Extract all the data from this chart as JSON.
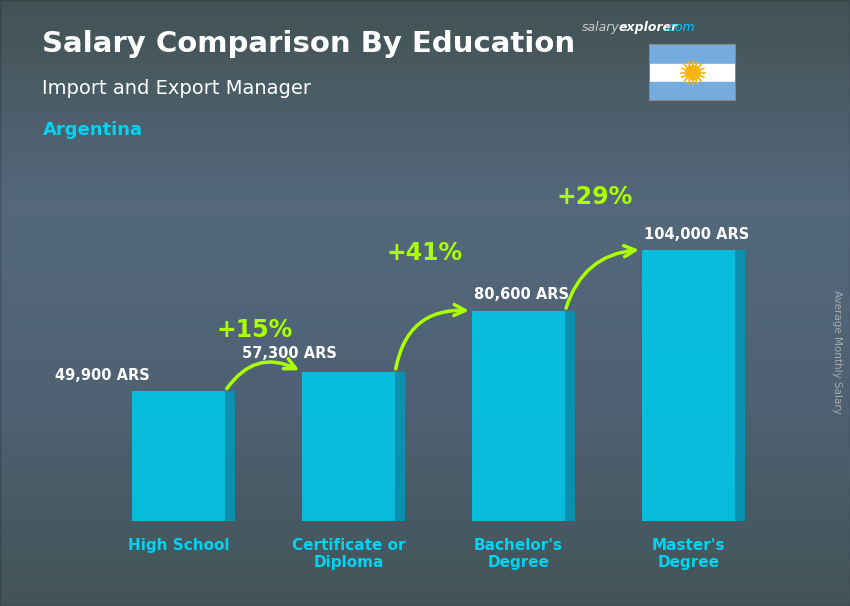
{
  "title": "Salary Comparison By Education",
  "subtitle": "Import and Export Manager",
  "country": "Argentina",
  "categories": [
    "High School",
    "Certificate or\nDiploma",
    "Bachelor's\nDegree",
    "Master's\nDegree"
  ],
  "values": [
    49900,
    57300,
    80600,
    104000
  ],
  "labels": [
    "49,900 ARS",
    "57,300 ARS",
    "80,600 ARS",
    "104,000 ARS"
  ],
  "pct_labels": [
    "+15%",
    "+41%",
    "+29%"
  ],
  "bar_color": "#00c8e8",
  "bar_color_side": "#0099bb",
  "background_top": "#6a9ab0",
  "background_bottom": "#8b7355",
  "title_color": "#ffffff",
  "subtitle_color": "#ffffff",
  "country_color": "#00d4f5",
  "label_color": "#ffffff",
  "pct_color": "#aaff00",
  "arrow_color": "#aaff00",
  "ylabel_text": "Average Monthly Salary",
  "ylim_max": 130000,
  "bar_width": 0.55
}
